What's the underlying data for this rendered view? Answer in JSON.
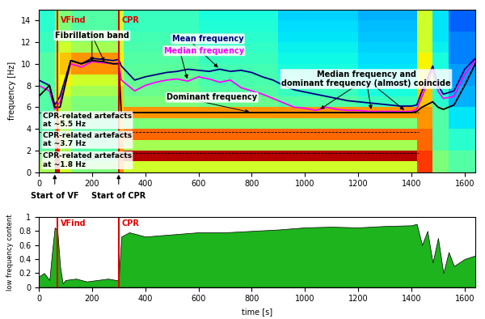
{
  "chart_data": [
    {
      "type": "heatmap",
      "ylabel": "frequency [Hz]",
      "xlim": [
        0,
        1640
      ],
      "xticks": [
        0,
        200,
        400,
        600,
        800,
        1000,
        1200,
        1400,
        1600
      ],
      "ylim": [
        0,
        15
      ],
      "yticks": [
        0,
        2,
        4,
        6,
        8,
        10,
        12,
        14
      ],
      "x_edges": [
        0,
        60,
        80,
        120,
        300,
        320,
        600,
        900,
        1200,
        1420,
        1480,
        1540,
        1640
      ],
      "y_edges": [
        0,
        1,
        2,
        3,
        4,
        5,
        6,
        7,
        8,
        9,
        10,
        11,
        12,
        13,
        14,
        15
      ],
      "clim": [
        0,
        1
      ],
      "cells": [
        [
          0.55,
          0.95,
          0.6,
          0.5,
          0.75,
          0.6,
          0.6,
          0.6,
          0.6,
          0.85,
          0.5,
          0.45
        ],
        [
          0.5,
          0.95,
          0.55,
          0.45,
          0.8,
          0.95,
          0.95,
          0.95,
          0.95,
          0.85,
          0.5,
          0.45
        ],
        [
          0.45,
          0.85,
          0.55,
          0.45,
          0.75,
          0.55,
          0.55,
          0.55,
          0.55,
          0.8,
          0.45,
          0.4
        ],
        [
          0.45,
          0.8,
          0.55,
          0.45,
          0.75,
          0.8,
          0.8,
          0.8,
          0.8,
          0.8,
          0.45,
          0.4
        ],
        [
          0.45,
          0.75,
          0.55,
          0.45,
          0.7,
          0.5,
          0.5,
          0.5,
          0.5,
          0.75,
          0.45,
          0.35
        ],
        [
          0.45,
          0.7,
          0.55,
          0.5,
          0.7,
          0.75,
          0.75,
          0.75,
          0.75,
          0.75,
          0.45,
          0.35
        ],
        [
          0.45,
          0.65,
          0.55,
          0.5,
          0.7,
          0.5,
          0.48,
          0.45,
          0.42,
          0.7,
          0.4,
          0.3
        ],
        [
          0.45,
          0.6,
          0.6,
          0.55,
          0.7,
          0.48,
          0.45,
          0.42,
          0.38,
          0.7,
          0.4,
          0.3
        ],
        [
          0.45,
          0.6,
          0.65,
          0.6,
          0.65,
          0.47,
          0.44,
          0.4,
          0.36,
          0.65,
          0.4,
          0.28
        ],
        [
          0.45,
          0.6,
          0.7,
          0.75,
          0.65,
          0.46,
          0.43,
          0.38,
          0.35,
          0.65,
          0.38,
          0.28
        ],
        [
          0.45,
          0.6,
          0.7,
          0.75,
          0.65,
          0.45,
          0.42,
          0.37,
          0.34,
          0.65,
          0.38,
          0.25
        ],
        [
          0.42,
          0.55,
          0.6,
          0.55,
          0.6,
          0.44,
          0.41,
          0.36,
          0.33,
          0.6,
          0.36,
          0.25
        ],
        [
          0.42,
          0.55,
          0.55,
          0.5,
          0.6,
          0.43,
          0.4,
          0.35,
          0.32,
          0.6,
          0.35,
          0.25
        ],
        [
          0.4,
          0.55,
          0.5,
          0.45,
          0.6,
          0.42,
          0.39,
          0.34,
          0.31,
          0.6,
          0.35,
          0.22
        ],
        [
          0.4,
          0.55,
          0.5,
          0.45,
          0.6,
          0.42,
          0.38,
          0.33,
          0.3,
          0.6,
          0.35,
          0.22
        ]
      ],
      "x": [
        0,
        40,
        60,
        80,
        120,
        160,
        200,
        240,
        280,
        300,
        310,
        360,
        400,
        440,
        480,
        520,
        560,
        600,
        640,
        680,
        720,
        760,
        800,
        840,
        880,
        920,
        960,
        1000,
        1040,
        1080,
        1120,
        1160,
        1200,
        1240,
        1280,
        1320,
        1360,
        1400,
        1420,
        1440,
        1480,
        1500,
        1520,
        1560,
        1600,
        1640
      ],
      "series": [
        {
          "name": "Mean frequency",
          "color": "#000080",
          "type": "line",
          "values": [
            8.5,
            8,
            6.2,
            7,
            10.3,
            10,
            10.5,
            10.4,
            10.3,
            10.4,
            9.8,
            8.5,
            8.8,
            9,
            9.2,
            9.3,
            9.5,
            9.4,
            9.3,
            9.5,
            9.3,
            9.4,
            9.2,
            8.8,
            8.5,
            8,
            7.6,
            7.4,
            7.2,
            7,
            6.8,
            6.6,
            6.5,
            6.4,
            6.3,
            6.2,
            6.1,
            6.1,
            6.2,
            7.5,
            9.8,
            8,
            7.2,
            7.5,
            9.5,
            10.5
          ]
        },
        {
          "name": "Median frequency",
          "color": "#ff00ff",
          "type": "line",
          "values": [
            8,
            7.5,
            5.8,
            6.5,
            10,
            9.7,
            10.2,
            10.1,
            10,
            10.1,
            8.5,
            7.5,
            8,
            8.3,
            8.5,
            8.6,
            8.4,
            8.8,
            8.6,
            8.3,
            8.5,
            7.8,
            7.5,
            7.2,
            6.8,
            6.4,
            6.0,
            5.9,
            5.7,
            6.0,
            5.8,
            5.7,
            5.7,
            5.6,
            5.6,
            5.6,
            5.6,
            5.6,
            5.8,
            7,
            9.5,
            7.5,
            6.8,
            7,
            9,
            10.3
          ]
        },
        {
          "name": "Dominant frequency",
          "color": "#000000",
          "type": "line",
          "values": [
            7,
            8,
            6,
            6,
            10.3,
            10,
            10.3,
            10.2,
            10,
            10,
            5.5,
            5.5,
            5.5,
            5.5,
            5.5,
            5.5,
            5.5,
            5.5,
            5.5,
            5.5,
            5.5,
            5.5,
            5.5,
            5.5,
            5.5,
            5.5,
            5.5,
            5.5,
            5.5,
            5.5,
            5.5,
            5.5,
            5.5,
            5.5,
            5.5,
            5.5,
            5.5,
            5.5,
            5.6,
            6,
            6.5,
            6,
            5.8,
            6.2,
            8,
            10
          ]
        }
      ],
      "events": [
        {
          "x": 70,
          "label": "VFind",
          "color": "#e00000"
        },
        {
          "x": 300,
          "label": "CPR",
          "color": "#e00000"
        }
      ],
      "annotations": [
        {
          "text": "Fibrillation band",
          "points": [
            [
              200,
              10
            ],
            [
              250,
              10
            ]
          ]
        },
        {
          "text": "Median frequency and\ndominant frequency (almost) coincide",
          "points": [
            [
              1050,
              5.7
            ],
            [
              1250,
              5.6
            ],
            [
              1380,
              5.6
            ]
          ]
        },
        {
          "text": "CPR-related artefacts\nat ~5.5 Hz",
          "points": [
            [
              330,
              5.5
            ]
          ]
        },
        {
          "text": "CPR-related artefacts\nat ~3.7 Hz",
          "points": [
            [
              330,
              3.7
            ]
          ]
        },
        {
          "text": "CPR-related artefacts\nat ~1.8 Hz",
          "points": [
            [
              330,
              1.8
            ]
          ]
        },
        {
          "text": "Start of VF",
          "points": [
            [
              60,
              0
            ]
          ]
        },
        {
          "text": "Start of CPR",
          "points": [
            [
              300,
              0
            ]
          ]
        }
      ]
    },
    {
      "type": "area",
      "xlabel": "time [s]",
      "ylabel": "low frequency content",
      "xlim": [
        0,
        1640
      ],
      "xticks": [
        0,
        200,
        400,
        600,
        800,
        1000,
        1200,
        1400,
        1600
      ],
      "ylim": [
        0,
        1
      ],
      "yticks": [
        0,
        0.2,
        0.4,
        0.6,
        0.8,
        1
      ],
      "color": "#1db41d",
      "x": [
        0,
        20,
        40,
        50,
        60,
        70,
        80,
        90,
        100,
        140,
        180,
        220,
        260,
        290,
        300,
        310,
        340,
        400,
        500,
        600,
        700,
        800,
        900,
        1000,
        1100,
        1200,
        1300,
        1400,
        1420,
        1440,
        1460,
        1480,
        1500,
        1520,
        1540,
        1560,
        1600,
        1640
      ],
      "values": [
        0.15,
        0.2,
        0.1,
        0.5,
        0.85,
        0.8,
        0.3,
        0.05,
        0.1,
        0.12,
        0.08,
        0.1,
        0.12,
        0.1,
        0.1,
        0.72,
        0.78,
        0.72,
        0.75,
        0.78,
        0.78,
        0.8,
        0.82,
        0.85,
        0.86,
        0.85,
        0.87,
        0.88,
        0.9,
        0.6,
        0.8,
        0.35,
        0.7,
        0.2,
        0.5,
        0.3,
        0.4,
        0.45
      ],
      "events": [
        {
          "x": 70,
          "label": "VFind",
          "color": "#e00000"
        },
        {
          "x": 300,
          "label": "CPR",
          "color": "#e00000"
        }
      ]
    }
  ]
}
